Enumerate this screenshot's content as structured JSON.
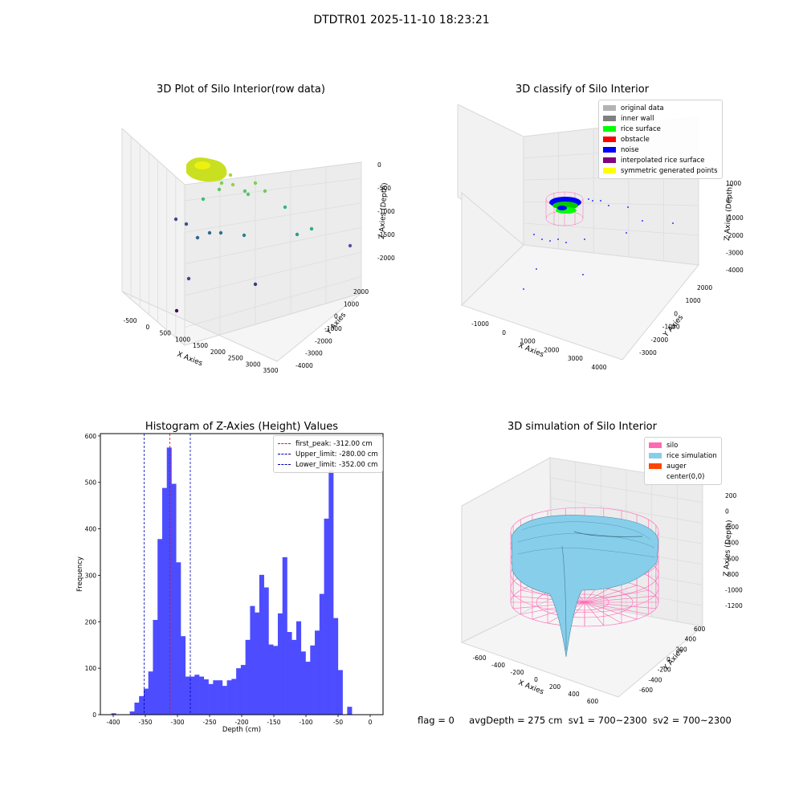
{
  "figure": {
    "title": "DTDTR01 2025-11-10 18:23:21",
    "status": {
      "flag": "flag = 0",
      "avg_depth": "avgDepth = 275 cm",
      "sv1": "sv1 = 700~2300",
      "sv2": "sv2 = 700~2300"
    }
  },
  "chart_data": [
    {
      "type": "scatter",
      "title": "3D Plot of Silo Interior(row data)",
      "xlabel": "X Axies",
      "ylabel": "Y Axies",
      "zlabel": "Z Axies (Depth)",
      "x_ticks": [
        "-500",
        "0",
        "500",
        "1000",
        "1500",
        "2000",
        "2500",
        "3000",
        "3500"
      ],
      "y_ticks": [
        "2000",
        "1000",
        "0",
        "-1000",
        "-2000",
        "-3000",
        "-4000"
      ],
      "z_ticks": [
        "0",
        "-500",
        "-1000",
        "-1500",
        "-2000"
      ],
      "colormap": "viridis"
    },
    {
      "type": "scatter",
      "title": "3D classify of Silo Interior",
      "xlabel": "X Axies",
      "ylabel": "Y Axies",
      "zlabel": "Z Axies (Depth)",
      "x_ticks": [
        "-1000",
        "0",
        "1000",
        "2000",
        "3000",
        "4000"
      ],
      "y_ticks": [
        "2000",
        "1000",
        "0",
        "-1000",
        "-2000",
        "-3000"
      ],
      "z_ticks": [
        "1000",
        "0",
        "-1000",
        "-2000",
        "-3000",
        "-4000"
      ],
      "legend_position": "top-right",
      "legend": [
        {
          "label": "original data",
          "color": "#b3b3b3"
        },
        {
          "label": "inner wall",
          "color": "#808080"
        },
        {
          "label": "rice surface",
          "color": "#00ff00"
        },
        {
          "label": "obstacle",
          "color": "#ff0000"
        },
        {
          "label": "noise",
          "color": "#0000ff"
        },
        {
          "label": "interpolated rice surface",
          "color": "#800080"
        },
        {
          "label": "symmetric generated points",
          "color": "#ffff00"
        }
      ]
    },
    {
      "type": "bar",
      "title": "Histogram of Z-Axies (Height) Values",
      "xlabel": "Depth (cm)",
      "ylabel": "Frequency",
      "xlim": [
        -420,
        20
      ],
      "ylim": [
        0,
        605
      ],
      "x_ticks": [
        -400,
        -350,
        -300,
        -250,
        -200,
        -150,
        -100,
        -50,
        0
      ],
      "y_ticks": [
        0,
        100,
        200,
        300,
        400,
        500,
        600
      ],
      "bar_color": "#4d4dff",
      "bin_start": -403,
      "bin_width": 7.2,
      "values": [
        3,
        0,
        0,
        0,
        7,
        26,
        40,
        56,
        93,
        204,
        378,
        488,
        575,
        497,
        328,
        169,
        82,
        82,
        86,
        82,
        76,
        66,
        74,
        74,
        62,
        74,
        77,
        100,
        107,
        161,
        234,
        220,
        301,
        274,
        151,
        148,
        218,
        339,
        178,
        161,
        201,
        136,
        114,
        149,
        181,
        260,
        422,
        527,
        208,
        96,
        0,
        17
      ],
      "reference_lines": [
        {
          "label": "first_peak: -312.00 cm",
          "value": -312,
          "color": "#ff0000"
        },
        {
          "label": "Upper_limit: -280.00 cm",
          "value": -280,
          "color": "#0000b3"
        },
        {
          "label": "Lower_limit: -352.00 cm",
          "value": -352,
          "color": "#0000b3"
        }
      ],
      "legend_position": "top-right"
    },
    {
      "type": "area",
      "title": "3D simulation of Silo Interior",
      "xlabel": "X Axies",
      "ylabel": "Y Axies",
      "zlabel": "Z Axies (Depth)",
      "x_ticks": [
        "-600",
        "-400",
        "-200",
        "0",
        "200",
        "400",
        "600"
      ],
      "y_ticks": [
        "600",
        "400",
        "200",
        "0",
        "-200",
        "-400",
        "-600"
      ],
      "z_ticks": [
        "200",
        "0",
        "-200",
        "-400",
        "-600",
        "-800",
        "-1000",
        "-1200"
      ],
      "legend_position": "top-right",
      "legend": [
        {
          "label": "silo",
          "color": "#ff69b4"
        },
        {
          "label": "rice simulation",
          "color": "#87ceeb"
        },
        {
          "label": "auger",
          "color": "#ff4500"
        },
        {
          "label": "center(0,0)",
          "color": ""
        }
      ]
    }
  ]
}
